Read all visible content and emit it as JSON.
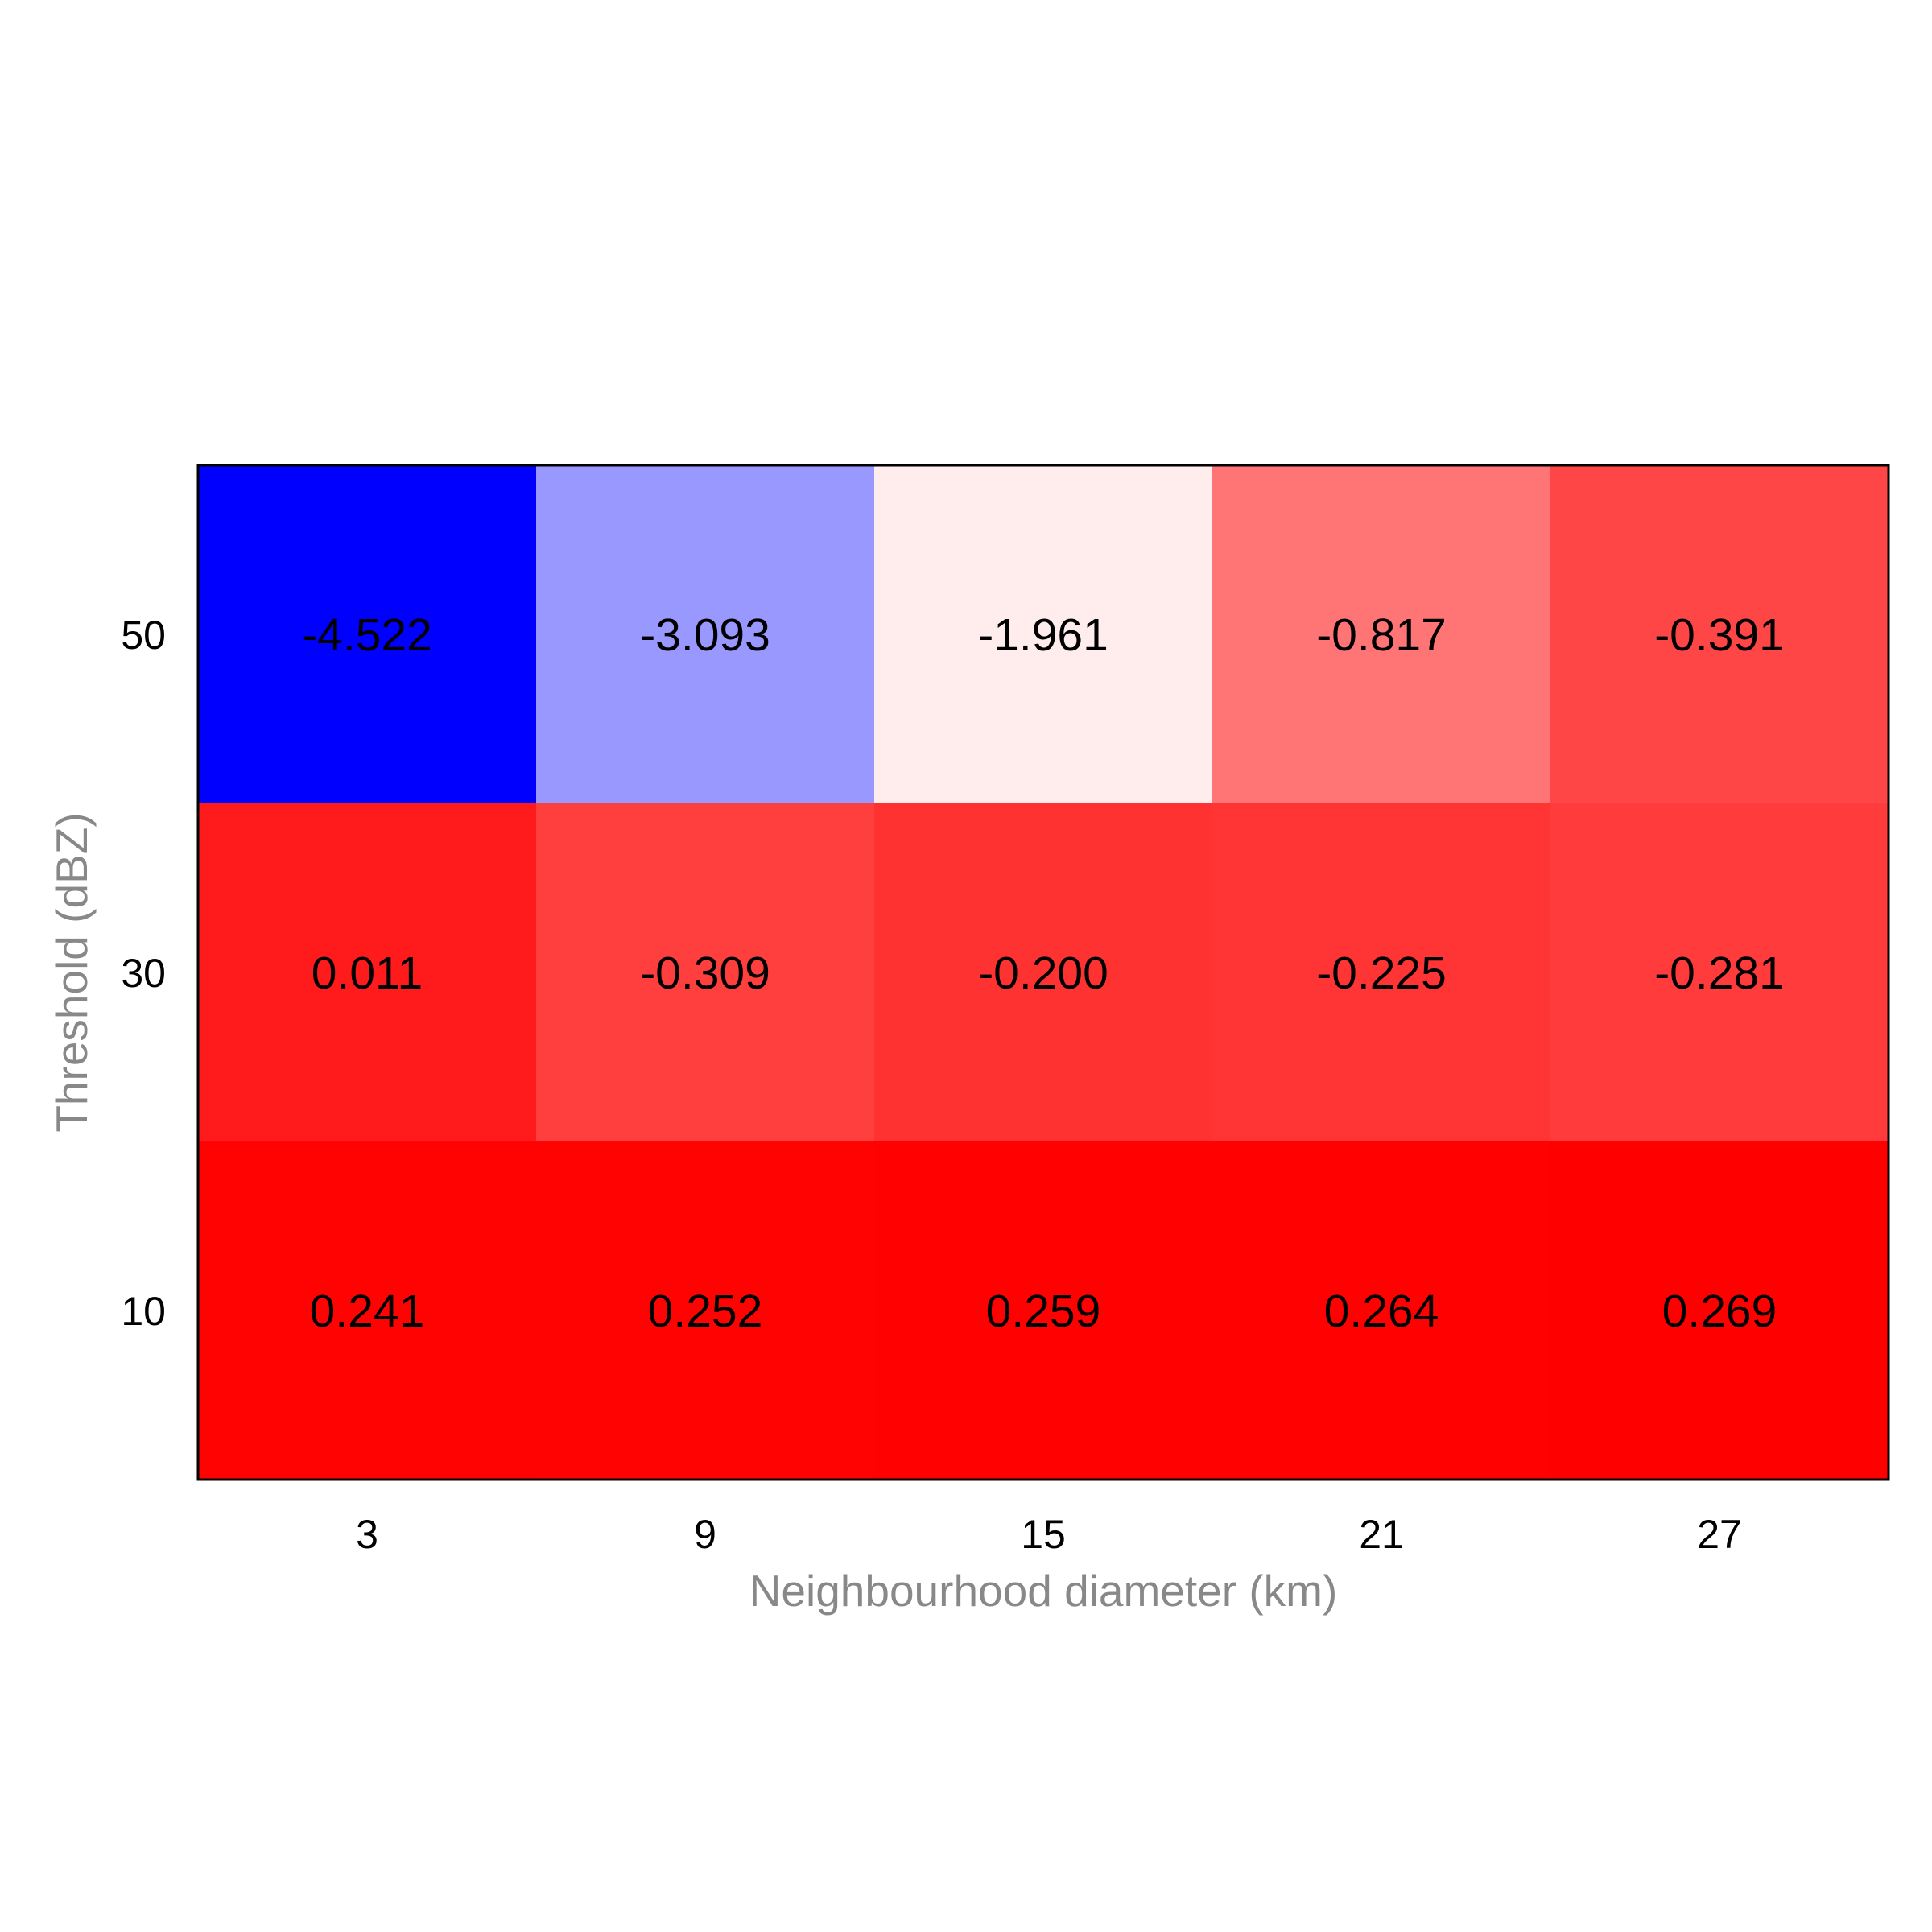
{
  "chart_data": {
    "type": "heatmap",
    "title": "",
    "xlabel": "Neighbourhood diameter (km)",
    "ylabel": "Threshold (dBZ)",
    "x_categories": [
      "3",
      "9",
      "15",
      "21",
      "27"
    ],
    "y_categories": [
      "50",
      "30",
      "10"
    ],
    "values": [
      [
        -4.522,
        -3.093,
        -1.961,
        -0.817,
        -0.391
      ],
      [
        0.011,
        -0.309,
        -0.2,
        -0.225,
        -0.281
      ],
      [
        0.241,
        0.252,
        0.259,
        0.264,
        0.269
      ]
    ],
    "value_labels": [
      [
        "-4.522",
        "-3.093",
        "-1.961",
        "-0.817",
        "-0.391"
      ],
      [
        "0.011",
        "-0.309",
        "-0.200",
        "-0.225",
        "-0.281"
      ],
      [
        "0.241",
        "0.252",
        "0.259",
        "0.264",
        "0.269"
      ]
    ],
    "colormap": "bwr",
    "color_range": [
      -4.522,
      0.269
    ],
    "grid": false,
    "colors": {
      "low": "#0000ff",
      "mid": "#ffffff",
      "high": "#ff0000",
      "frame": "#000000"
    }
  }
}
